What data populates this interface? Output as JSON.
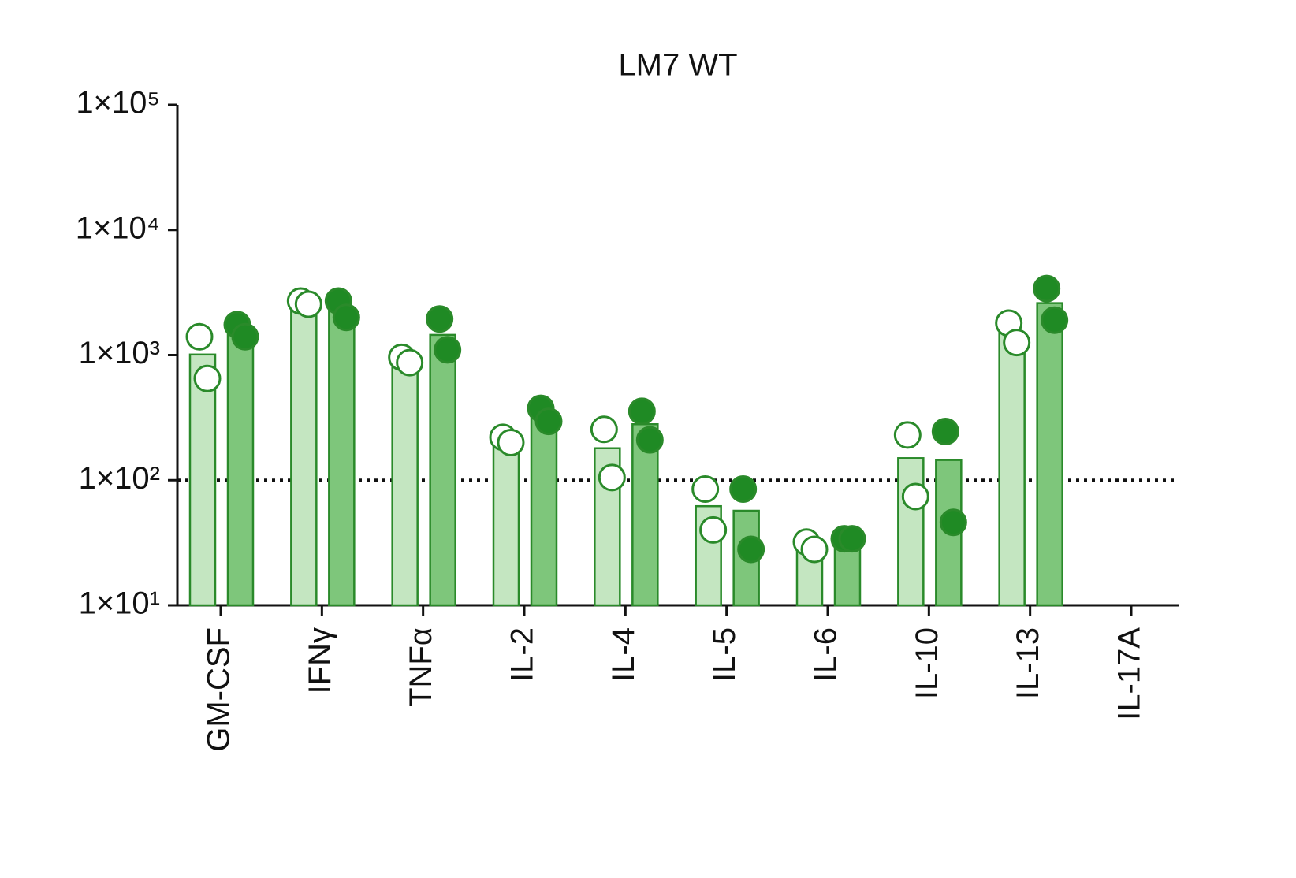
{
  "chart_data": {
    "type": "bar",
    "title": "LM7 WT",
    "categories": [
      "GM-CSF",
      "IFNγ",
      "TNFα",
      "IL-2",
      "IL-4",
      "IL-5",
      "IL-6",
      "IL-10",
      "IL-13",
      "IL-17A"
    ],
    "log_scale": true,
    "ylim": [
      10,
      100000
    ],
    "yticks": [
      {
        "value": 10,
        "label": "1×10¹"
      },
      {
        "value": 100,
        "label": "1×10²"
      },
      {
        "value": 1000,
        "label": "1×10³"
      },
      {
        "value": 10000,
        "label": "1×10⁴"
      },
      {
        "value": 100000,
        "label": "1×10⁵"
      }
    ],
    "reference_line": 100,
    "edge_color": "#2a8a2a",
    "series": [
      {
        "color": "#c4e6c1",
        "point_color": "#ffffff",
        "values": [
          1010,
          2650,
          910,
          210,
          180,
          62,
          30,
          150,
          1500,
          null
        ],
        "points": [
          [
            1400,
            650
          ],
          [
            2700,
            2550
          ],
          [
            960,
            870
          ],
          [
            220,
            200
          ],
          [
            255,
            105
          ],
          [
            85,
            40
          ],
          [
            32,
            28
          ],
          [
            230,
            74
          ],
          [
            1800,
            1260
          ],
          null
        ]
      },
      {
        "color": "#7ec67b",
        "point_color": "#1f8a24",
        "values": [
          1600,
          2350,
          1450,
          335,
          280,
          57,
          34,
          145,
          2600,
          null
        ],
        "points": [
          [
            1750,
            1400
          ],
          [
            2700,
            2000
          ],
          [
            1940,
            1100
          ],
          [
            375,
            295
          ],
          [
            355,
            210
          ],
          [
            85,
            28
          ],
          [
            34,
            34
          ],
          [
            245,
            46
          ],
          [
            3400,
            1900
          ],
          null
        ]
      }
    ]
  }
}
